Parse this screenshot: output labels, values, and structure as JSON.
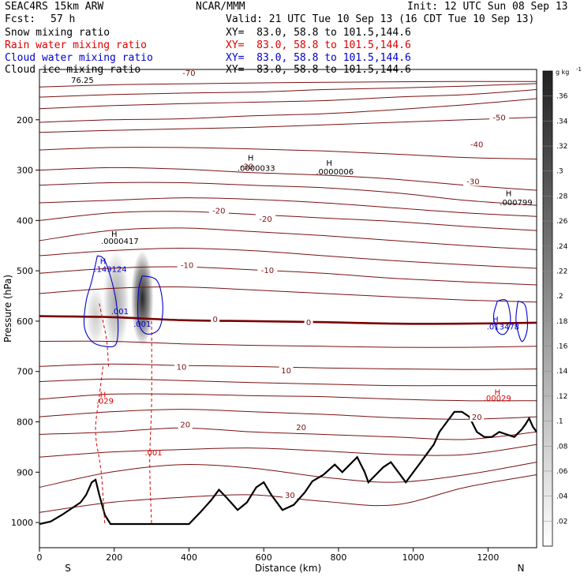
{
  "header": {
    "model": "SEAC4RS 15km ARW",
    "org": "NCAR/MMM",
    "init": "Init: 12 UTC Sun 08 Sep 13",
    "fcst_label": "Fcst:",
    "fcst_value": "57 h",
    "valid": "Valid: 21 UTC Tue 10 Sep 13 (16 CDT Tue 10 Sep 13)"
  },
  "legend": [
    {
      "name": "Snow mixing ratio",
      "xy": "XY=  83.0, 58.8 to 101.5,144.6",
      "color": "#000000"
    },
    {
      "name": "Rain water mixing ratio",
      "xy": "XY=  83.0, 58.8 to 101.5,144.6",
      "color": "#dd0000"
    },
    {
      "name": "Cloud water mixing ratio",
      "xy": "XY=  83.0, 58.8 to 101.5,144.6",
      "color": "#0000cc"
    },
    {
      "name": "Cloud ice mixing ratio",
      "xy": "XY=  83.0, 58.8 to 101.5,144.6",
      "color": "#000000"
    }
  ],
  "chart_data": {
    "type": "contour",
    "xlabel": "Distance (km)",
    "ylabel": "Pressure (hPa)",
    "xlim": [
      0,
      1330
    ],
    "ylim": [
      1050,
      100
    ],
    "xticks": [
      0,
      200,
      400,
      600,
      800,
      1000,
      1200
    ],
    "yticks": [
      200,
      300,
      400,
      500,
      600,
      700,
      800,
      900,
      1000
    ],
    "x_end_labels": {
      "left": "S",
      "right": "N"
    },
    "colorbar": {
      "unit": "g kg",
      "unit_exp": "-1",
      "ticks": [
        ".02",
        ".04",
        ".06",
        ".08",
        ".1",
        ".12",
        ".14",
        ".16",
        ".18",
        ".2",
        ".22",
        ".24",
        ".26",
        ".28",
        ".3",
        ".32",
        ".34",
        ".36"
      ]
    },
    "temperature_contours": {
      "color": "#7a1010",
      "zero_color": "#7a0000",
      "lines": [
        {
          "p": [
            135,
            130,
            128,
            126,
            125,
            124,
            124
          ]
        },
        {
          "p": [
            155,
            150,
            147,
            145,
            140,
            137,
            133,
            128
          ]
        },
        {
          "p": [
            178,
            172,
            168,
            165,
            162,
            155,
            150,
            140
          ]
        },
        {
          "p": [
            205,
            200,
            198,
            192,
            188,
            180,
            170,
            158
          ]
        },
        {
          "p": [
            225,
            221,
            218,
            215,
            210,
            205,
            200,
            195
          ]
        },
        {
          "p": [
            260,
            255,
            255,
            258,
            262,
            268,
            275,
            278
          ]
        },
        {
          "p": [
            300,
            295,
            298,
            305,
            310,
            318,
            330,
            340
          ]
        },
        {
          "p": [
            330,
            325,
            325,
            330,
            335,
            345,
            360,
            370
          ]
        },
        {
          "p": [
            365,
            360,
            355,
            358,
            365,
            375,
            385,
            392
          ]
        },
        {
          "p": [
            400,
            385,
            382,
            388,
            395,
            402,
            412,
            420
          ]
        },
        {
          "p": [
            440,
            420,
            415,
            422,
            430,
            440,
            450,
            458
          ]
        },
        {
          "p": [
            470,
            460,
            455,
            460,
            470,
            480,
            488,
            495
          ]
        },
        {
          "p": [
            505,
            495,
            492,
            498,
            505,
            515,
            522,
            528
          ]
        },
        {
          "p": [
            545,
            535,
            532,
            538,
            545,
            552,
            558,
            562
          ]
        },
        {
          "p": [
            590,
            592,
            598,
            600,
            602,
            605,
            605,
            603
          ],
          "zero": true
        },
        {
          "p": [
            640,
            640,
            645,
            648,
            650,
            652,
            652,
            650
          ]
        },
        {
          "p": [
            690,
            685,
            688,
            690,
            693,
            695,
            696,
            695
          ]
        },
        {
          "p": [
            720,
            715,
            718,
            722,
            725,
            728,
            728,
            728
          ]
        },
        {
          "p": [
            755,
            745,
            745,
            748,
            750,
            755,
            758,
            758
          ]
        },
        {
          "p": [
            790,
            780,
            775,
            780,
            785,
            792,
            795,
            790
          ]
        },
        {
          "p": [
            825,
            820,
            812,
            820,
            825,
            830,
            835,
            820
          ]
        },
        {
          "p": [
            870,
            860,
            855,
            852,
            858,
            865,
            865,
            845
          ]
        },
        {
          "p": [
            930,
            900,
            885,
            892,
            910,
            920,
            905,
            880
          ]
        },
        {
          "p": [
            980,
            960,
            950,
            945,
            958,
            965,
            930,
            905
          ]
        }
      ],
      "labels": [
        {
          "x": 400,
          "p": 106,
          "text": "-70"
        },
        {
          "x": 1230,
          "p": 195,
          "text": "-50"
        },
        {
          "x": 1170,
          "p": 248,
          "text": "-40"
        },
        {
          "x": 1160,
          "p": 322,
          "text": "-30"
        },
        {
          "x": 555,
          "p": 292,
          "text": "-30"
        },
        {
          "x": 480,
          "p": 380,
          "text": "-20"
        },
        {
          "x": 605,
          "p": 396,
          "text": "-20"
        },
        {
          "x": 395,
          "p": 488,
          "text": "-10"
        },
        {
          "x": 610,
          "p": 498,
          "text": "-10"
        },
        {
          "x": 470,
          "p": 595,
          "text": "0"
        },
        {
          "x": 720,
          "p": 602,
          "text": "0"
        },
        {
          "x": 380,
          "p": 690,
          "text": "10"
        },
        {
          "x": 660,
          "p": 697,
          "text": "10"
        },
        {
          "x": 390,
          "p": 805,
          "text": "20"
        },
        {
          "x": 700,
          "p": 810,
          "text": "20"
        },
        {
          "x": 1170,
          "p": 790,
          "text": "20"
        },
        {
          "x": 670,
          "p": 945,
          "text": "30"
        }
      ]
    },
    "terrain": {
      "color": "#000000",
      "points": [
        [
          0,
          1003
        ],
        [
          30,
          998
        ],
        [
          60,
          985
        ],
        [
          90,
          970
        ],
        [
          110,
          960
        ],
        [
          125,
          945
        ],
        [
          140,
          920
        ],
        [
          150,
          915
        ],
        [
          160,
          945
        ],
        [
          175,
          985
        ],
        [
          190,
          1003
        ],
        [
          400,
          1003
        ],
        [
          430,
          980
        ],
        [
          460,
          955
        ],
        [
          480,
          935
        ],
        [
          500,
          950
        ],
        [
          530,
          975
        ],
        [
          555,
          960
        ],
        [
          580,
          930
        ],
        [
          600,
          920
        ],
        [
          620,
          945
        ],
        [
          650,
          975
        ],
        [
          680,
          965
        ],
        [
          710,
          940
        ],
        [
          730,
          918
        ],
        [
          760,
          905
        ],
        [
          790,
          885
        ],
        [
          810,
          900
        ],
        [
          830,
          885
        ],
        [
          850,
          870
        ],
        [
          870,
          900
        ],
        [
          880,
          920
        ],
        [
          900,
          905
        ],
        [
          920,
          890
        ],
        [
          940,
          880
        ],
        [
          960,
          900
        ],
        [
          980,
          920
        ],
        [
          1000,
          900
        ],
        [
          1020,
          880
        ],
        [
          1040,
          860
        ],
        [
          1055,
          845
        ],
        [
          1070,
          820
        ],
        [
          1090,
          800
        ],
        [
          1110,
          780
        ],
        [
          1130,
          780
        ],
        [
          1150,
          790
        ],
        [
          1170,
          820
        ],
        [
          1190,
          830
        ],
        [
          1210,
          830
        ],
        [
          1230,
          820
        ],
        [
          1250,
          825
        ],
        [
          1270,
          830
        ],
        [
          1290,
          815
        ],
        [
          1300,
          805
        ],
        [
          1310,
          793
        ],
        [
          1320,
          810
        ],
        [
          1330,
          820
        ]
      ]
    },
    "snow_shading": [
      {
        "x": 275,
        "p": 555,
        "rx": 30,
        "rp": 95,
        "max": 0.34
      },
      {
        "x": 205,
        "p": 560,
        "rx": 35,
        "rp": 100,
        "max": 0.14
      },
      {
        "x": 150,
        "p": 590,
        "rx": 25,
        "rp": 60,
        "max": 0.08
      }
    ],
    "rain_contours": [
      {
        "value": ".001",
        "points": [
          [
            170,
            690
          ],
          [
            160,
            750
          ],
          [
            150,
            820
          ],
          [
            165,
            900
          ],
          [
            175,
            1005
          ]
        ],
        "dashed": true
      },
      {
        "value": ".001",
        "points": [
          [
            300,
            600
          ],
          [
            300,
            760
          ],
          [
            295,
            880
          ],
          [
            300,
            1005
          ]
        ],
        "dashed": true
      },
      {
        "value": ".001",
        "points": [
          [
            160,
            565
          ],
          [
            170,
            600
          ],
          [
            180,
            640
          ],
          [
            185,
            690
          ]
        ],
        "dashed": true
      }
    ],
    "rain_labels": [
      {
        "x": 170,
        "p": 745,
        "text": "H",
        "dy": -8
      },
      {
        "x": 175,
        "p": 758,
        "text": ".029",
        "dy": 6
      },
      {
        "x": 305,
        "p": 860,
        "text": ".001",
        "dy": 0
      },
      {
        "x": 1225,
        "p": 740,
        "text": "H",
        "dy": -6
      },
      {
        "x": 1225,
        "p": 752,
        "text": ".00029",
        "dy": 6
      }
    ],
    "cloud_water_contours": [
      {
        "points": [
          [
            155,
            470
          ],
          [
            140,
            520
          ],
          [
            125,
            560
          ],
          [
            120,
            610
          ],
          [
            140,
            640
          ],
          [
            175,
            650
          ],
          [
            205,
            645
          ],
          [
            210,
            600
          ],
          [
            200,
            540
          ],
          [
            175,
            480
          ],
          [
            155,
            470
          ]
        ]
      },
      {
        "points": [
          [
            275,
            510
          ],
          [
            265,
            540
          ],
          [
            265,
            600
          ],
          [
            285,
            625
          ],
          [
            320,
            615
          ],
          [
            330,
            570
          ],
          [
            315,
            520
          ],
          [
            275,
            510
          ]
        ]
      },
      {
        "points": [
          [
            1225,
            560
          ],
          [
            1215,
            590
          ],
          [
            1225,
            620
          ],
          [
            1245,
            625
          ],
          [
            1260,
            600
          ],
          [
            1250,
            560
          ],
          [
            1225,
            560
          ]
        ]
      },
      {
        "points": [
          [
            1280,
            560
          ],
          [
            1275,
            600
          ],
          [
            1290,
            640
          ],
          [
            1305,
            615
          ],
          [
            1300,
            570
          ],
          [
            1280,
            560
          ]
        ]
      }
    ],
    "cloud_water_labels": [
      {
        "x": 170,
        "p": 480,
        "text": "H"
      },
      {
        "x": 190,
        "p": 496,
        "text": ".149124"
      },
      {
        "x": 215,
        "p": 580,
        "text": ".001"
      },
      {
        "x": 275,
        "p": 605,
        "text": ".001"
      },
      {
        "x": 1220,
        "p": 595,
        "text": "H"
      },
      {
        "x": 1240,
        "p": 610,
        "text": ".013478"
      }
    ],
    "ice_labels": [
      {
        "x": 115,
        "p": 120,
        "text": "76.25"
      },
      {
        "x": 200,
        "p": 426,
        "text": "H"
      },
      {
        "x": 215,
        "p": 440,
        "text": ".0000417"
      },
      {
        "x": 565,
        "p": 275,
        "text": "H"
      },
      {
        "x": 580,
        "p": 295,
        "text": ".0000033"
      },
      {
        "x": 775,
        "p": 285,
        "text": "H"
      },
      {
        "x": 790,
        "p": 302,
        "text": ".0000006"
      },
      {
        "x": 1255,
        "p": 345,
        "text": "H"
      },
      {
        "x": 1275,
        "p": 363,
        "text": ".000799"
      }
    ]
  }
}
